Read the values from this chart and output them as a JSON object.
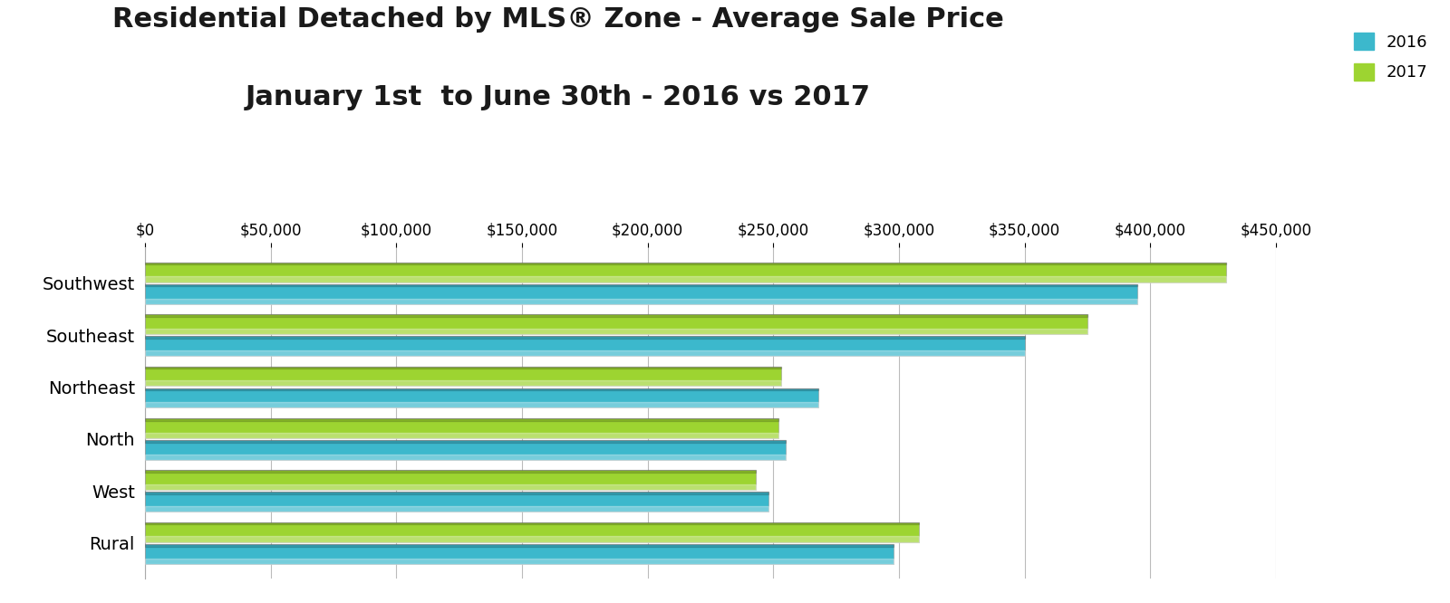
{
  "title_line1": "Residential Detached by MLS® Zone - Average Sale Price",
  "title_line2": "January 1st  to June 30th - 2016 vs 2017",
  "categories": [
    "Southwest",
    "Southeast",
    "Northeast",
    "North",
    "West",
    "Rural"
  ],
  "values_2016": [
    395000,
    350000,
    268000,
    255000,
    248000,
    298000
  ],
  "values_2017": [
    430000,
    375000,
    253000,
    252000,
    243000,
    308000
  ],
  "color_2016": "#3CB8CC",
  "color_2017": "#9DD431",
  "xlim": [
    0,
    450000
  ],
  "xticks": [
    0,
    50000,
    100000,
    150000,
    200000,
    250000,
    300000,
    350000,
    400000,
    450000
  ],
  "background_color": "#FFFFFF",
  "legend_2016": "2016",
  "legend_2017": "2017",
  "title_fontsize": 22,
  "axis_fontsize": 12,
  "label_fontsize": 14
}
